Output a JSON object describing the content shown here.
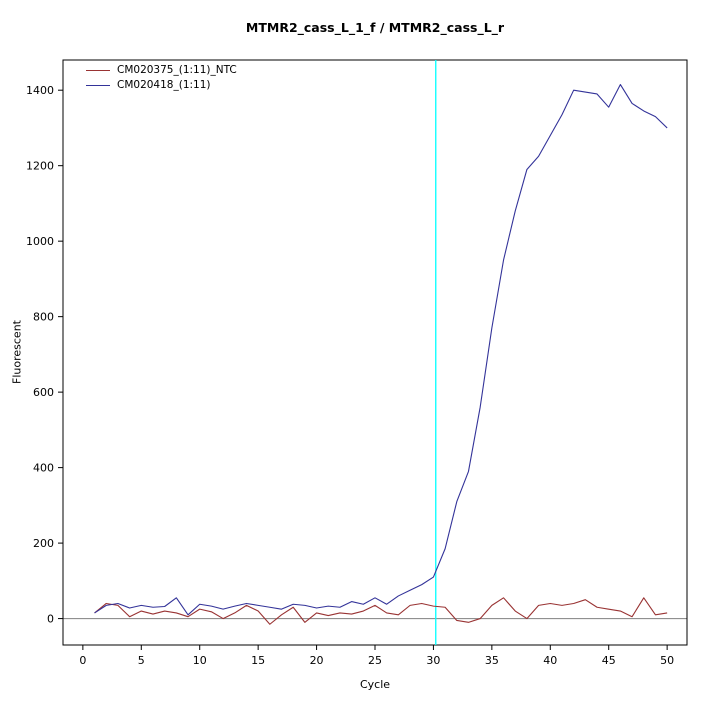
{
  "title": "MTMR2_cass_L_1_f / MTMR2_cass_L_r",
  "chart_data": {
    "type": "line",
    "title": "MTMR2_cass_L_1_f / MTMR2_cass_L_r",
    "xlabel": "Cycle",
    "ylabel": "Fluorescent",
    "xlim": [
      -1.7,
      51.7
    ],
    "ylim": [
      -70,
      1480
    ],
    "x_ticks": [
      0,
      5,
      10,
      15,
      20,
      25,
      30,
      35,
      40,
      45,
      50
    ],
    "y_ticks": [
      0,
      200,
      400,
      600,
      800,
      1000,
      1200,
      1400
    ],
    "grid": false,
    "legend_position": "top-left",
    "zero_line": {
      "y": 0,
      "color": "#808080"
    },
    "threshold_line": {
      "x": 30.2,
      "color": "#00FFFF"
    },
    "x": [
      1,
      2,
      3,
      4,
      5,
      6,
      7,
      8,
      9,
      10,
      11,
      12,
      13,
      14,
      15,
      16,
      17,
      18,
      19,
      20,
      21,
      22,
      23,
      24,
      25,
      26,
      27,
      28,
      29,
      30,
      31,
      32,
      33,
      34,
      35,
      36,
      37,
      38,
      39,
      40,
      41,
      42,
      43,
      44,
      45,
      46,
      47,
      48,
      49,
      50
    ],
    "series": [
      {
        "name": "CM020375_(1:11)_NTC",
        "color": "#993333",
        "values": [
          15,
          40,
          35,
          5,
          20,
          12,
          20,
          15,
          5,
          25,
          18,
          0,
          15,
          35,
          20,
          -15,
          10,
          30,
          -10,
          15,
          8,
          15,
          12,
          20,
          35,
          15,
          10,
          35,
          40,
          33,
          30,
          -5,
          -10,
          0,
          35,
          55,
          20,
          0,
          35,
          40,
          35,
          40,
          50,
          30,
          25,
          20,
          5,
          55,
          10,
          15
        ]
      },
      {
        "name": "CM020418_(1:11)",
        "color": "#333399",
        "values": [
          15,
          35,
          40,
          28,
          35,
          30,
          32,
          55,
          10,
          38,
          33,
          25,
          33,
          40,
          35,
          30,
          25,
          38,
          35,
          28,
          33,
          30,
          45,
          38,
          55,
          38,
          60,
          75,
          90,
          110,
          185,
          310,
          390,
          560,
          770,
          950,
          1080,
          1190,
          1225,
          1280,
          1335,
          1400,
          1395,
          1390,
          1355,
          1415,
          1365,
          1345,
          1330,
          1300
        ]
      }
    ]
  }
}
